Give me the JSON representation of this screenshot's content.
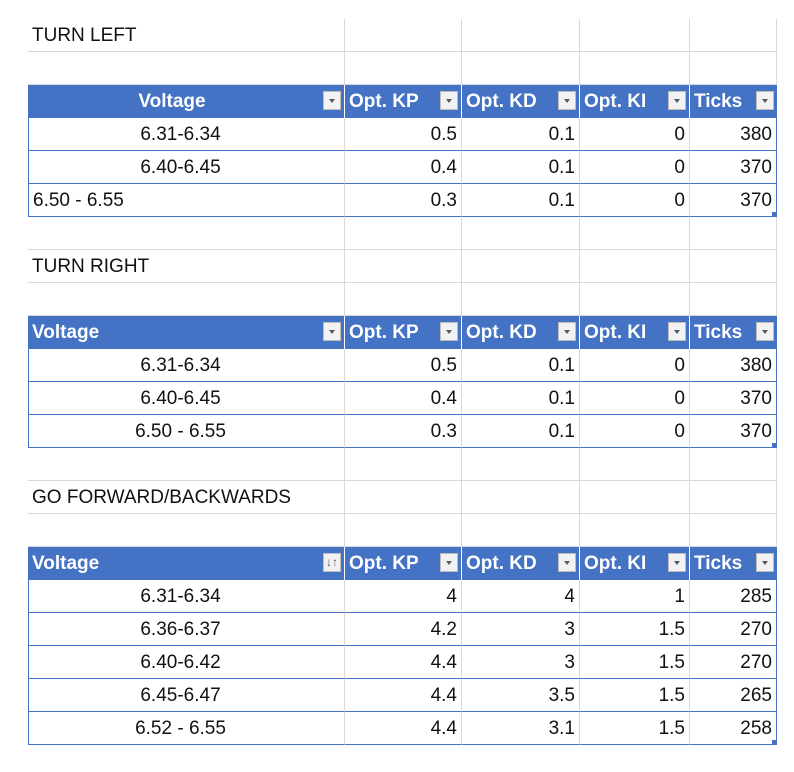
{
  "sections": [
    {
      "title": "TURN LEFT",
      "headers": [
        "Voltage",
        "Opt. KP",
        "Opt. KD",
        "Opt. KI",
        "Ticks"
      ],
      "rows": [
        [
          "6.31-6.34",
          "0.5",
          "0.1",
          "0",
          "380"
        ],
        [
          "6.40-6.45",
          "0.4",
          "0.1",
          "0",
          "370"
        ],
        [
          "6.50 - 6.55",
          "0.3",
          "0.1",
          "0",
          "370"
        ]
      ]
    },
    {
      "title": "TURN RIGHT",
      "headers": [
        "Voltage",
        "Opt. KP",
        "Opt. KD",
        "Opt. KI",
        "Ticks"
      ],
      "rows": [
        [
          "6.31-6.34",
          "0.5",
          "0.1",
          "0",
          "380"
        ],
        [
          "6.40-6.45",
          "0.4",
          "0.1",
          "0",
          "370"
        ],
        [
          "6.50 - 6.55",
          "0.3",
          "0.1",
          "0",
          "370"
        ]
      ]
    },
    {
      "title": "GO FORWARD/BACKWARDS",
      "headers": [
        "Voltage",
        "Opt. KP",
        "Opt. KD",
        "Opt. KI",
        "Ticks"
      ],
      "rows": [
        [
          "6.31-6.34",
          "4",
          "4",
          "1",
          "285"
        ],
        [
          "6.36-6.37",
          "4.2",
          "3",
          "1.5",
          "270"
        ],
        [
          "6.40-6.42",
          "4.4",
          "3",
          "1.5",
          "270"
        ],
        [
          "6.45-6.47",
          "4.4",
          "3.5",
          "1.5",
          "265"
        ],
        [
          "6.52 - 6.55",
          "4.4",
          "3.1",
          "1.5",
          "258"
        ]
      ]
    }
  ],
  "icons": {
    "filter_dropdown": "filter-dropdown-icon",
    "sort_ascending": "sort-ascending-filter-icon"
  },
  "colors": {
    "header_bg": "#4472c4",
    "header_text": "#ffffff",
    "gridline": "#d9d9d9"
  }
}
